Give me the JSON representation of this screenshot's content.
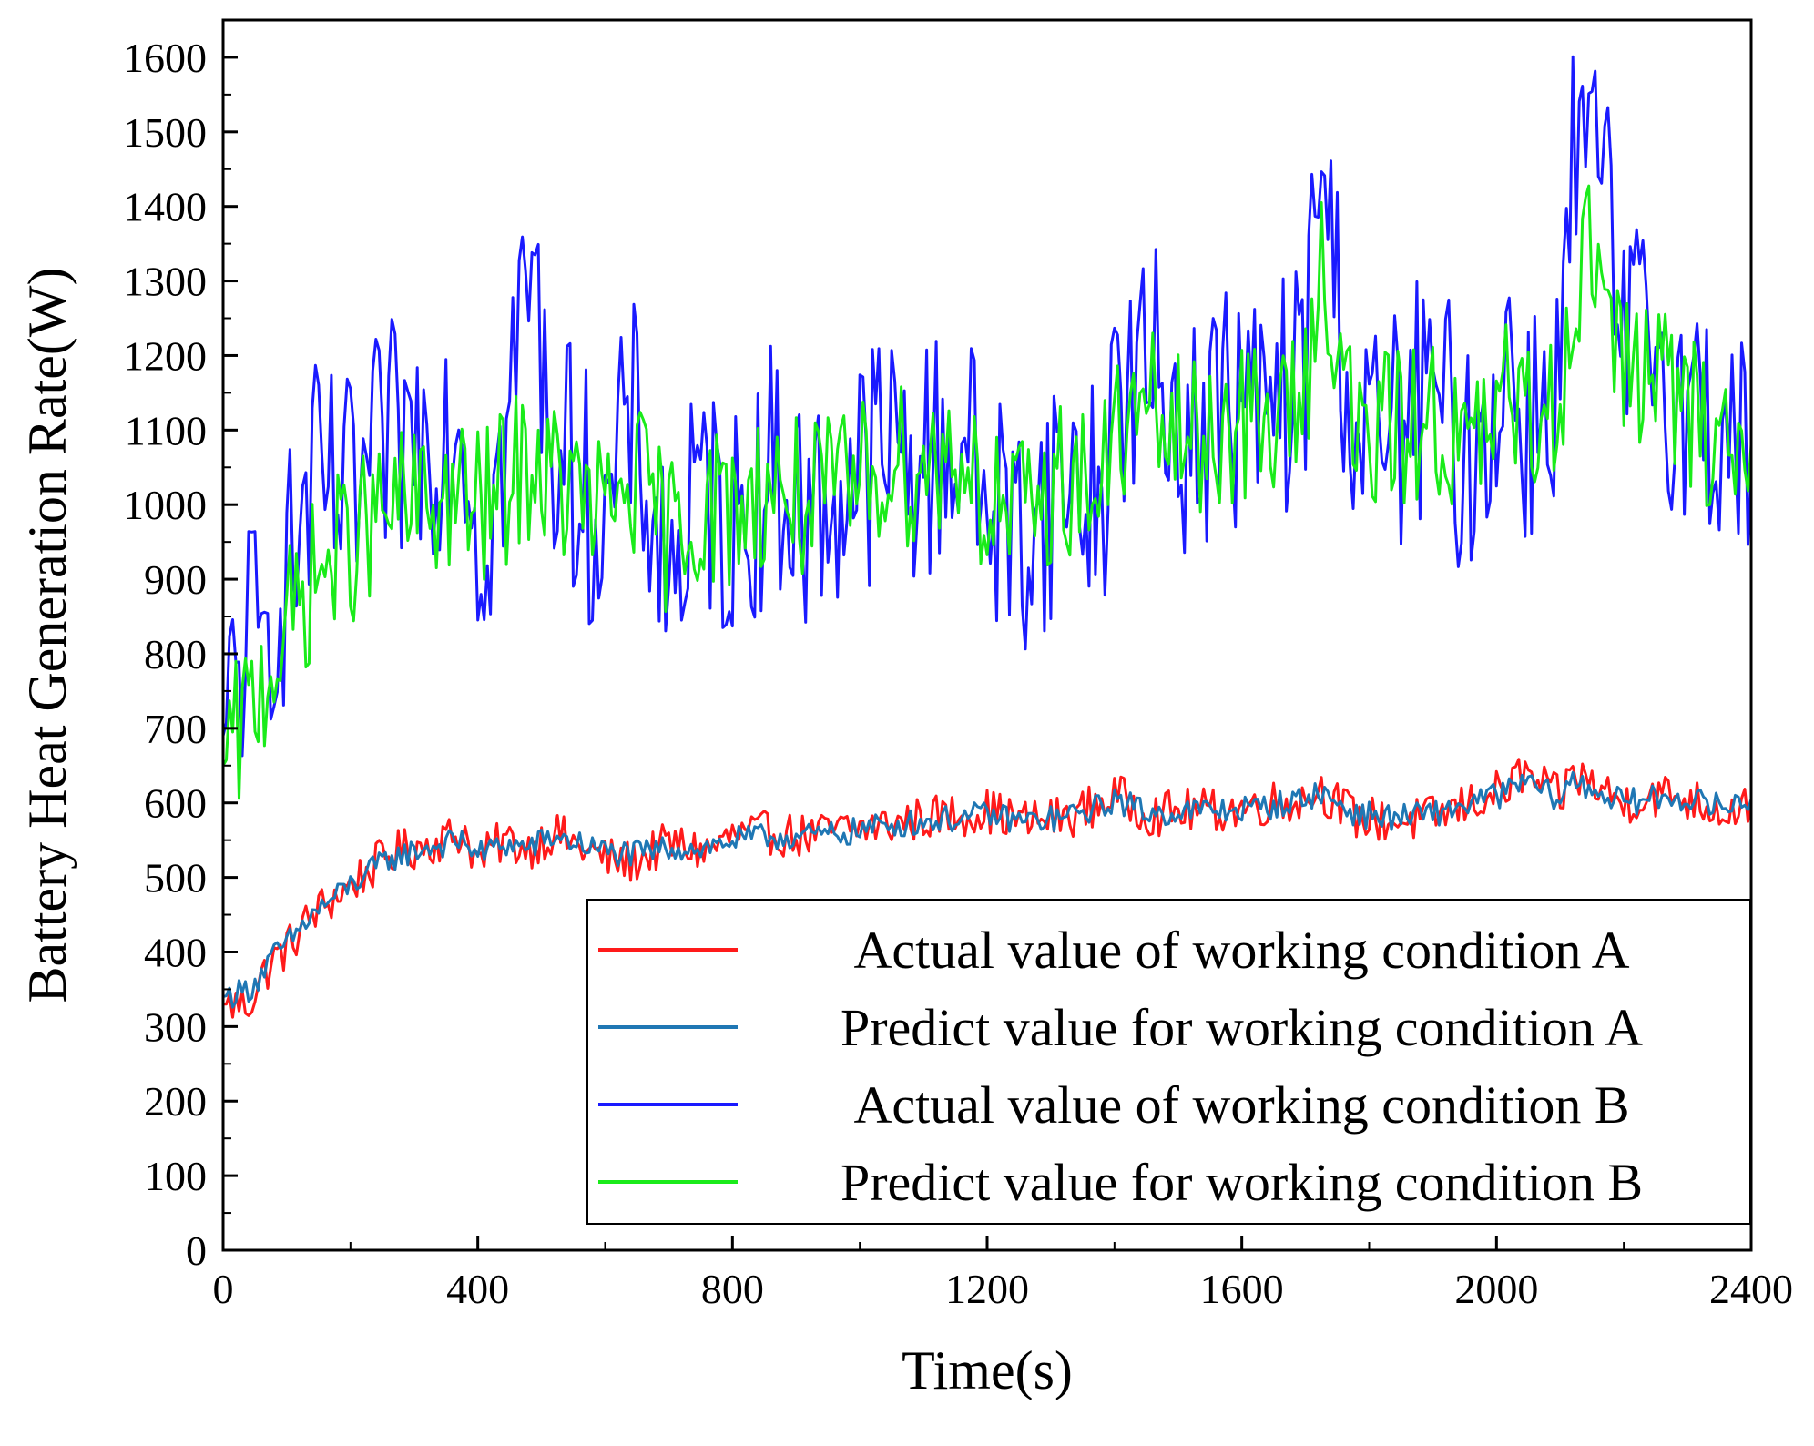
{
  "chart_data": {
    "type": "line",
    "title": "",
    "xlabel": "Time(s)",
    "ylabel": "Battery Heat Generation Rate(W)",
    "xlim": [
      0,
      2400
    ],
    "ylim": [
      0,
      1650
    ],
    "xticks": [
      0,
      400,
      800,
      1200,
      1600,
      2000,
      2400
    ],
    "yticks": [
      0,
      100,
      200,
      300,
      400,
      500,
      600,
      700,
      800,
      900,
      1000,
      1100,
      1200,
      1300,
      1400,
      1500,
      1600
    ],
    "xtick_labels": [
      "0",
      "400",
      "800",
      "1200",
      "1600",
      "2000",
      "2400"
    ],
    "ytick_labels": [
      "0",
      "100",
      "200",
      "300",
      "400",
      "500",
      "600",
      "700",
      "800",
      "900",
      "1000",
      "1100",
      "1200",
      "1300",
      "1400",
      "1500",
      "1600"
    ],
    "legend_position": "bottom-right",
    "series": [
      {
        "name": "Actual value of working condition A",
        "color": "#ff1a1a",
        "x": [
          0,
          20,
          40,
          60,
          80,
          100,
          140,
          200,
          260,
          320,
          380,
          400,
          440,
          480,
          520,
          560,
          600,
          640,
          700,
          760,
          800,
          860,
          920,
          980,
          1040,
          1100,
          1160,
          1200,
          1260,
          1320,
          1380,
          1400,
          1460,
          1520,
          1580,
          1640,
          1700,
          1720,
          1780,
          1840,
          1900,
          1960,
          2020,
          2040,
          2100,
          2120,
          2160,
          2200,
          2240,
          2280,
          2320,
          2360,
          2400
        ],
        "values": [
          330,
          330,
          330,
          365,
          390,
          405,
          450,
          490,
          530,
          545,
          560,
          520,
          550,
          540,
          560,
          540,
          525,
          520,
          545,
          535,
          555,
          560,
          555,
          565,
          570,
          580,
          585,
          590,
          575,
          580,
          600,
          610,
          585,
          590,
          590,
          600,
          605,
          620,
          580,
          575,
          580,
          600,
          620,
          640,
          605,
          640,
          620,
          600,
          610,
          610,
          600,
          590,
          600
        ]
      },
      {
        "name": "Predict value for working condition A",
        "color": "#1f77b4",
        "x": [
          0,
          20,
          40,
          60,
          80,
          100,
          140,
          200,
          260,
          320,
          380,
          400,
          440,
          480,
          520,
          560,
          600,
          640,
          700,
          760,
          800,
          860,
          920,
          980,
          1040,
          1100,
          1160,
          1200,
          1260,
          1320,
          1380,
          1400,
          1460,
          1520,
          1580,
          1640,
          1700,
          1720,
          1780,
          1840,
          1900,
          1960,
          2020,
          2040,
          2100,
          2120,
          2160,
          2200,
          2240,
          2280,
          2320,
          2360,
          2400
        ],
        "values": [
          340,
          345,
          350,
          370,
          395,
          410,
          450,
          490,
          525,
          540,
          550,
          530,
          545,
          540,
          555,
          545,
          535,
          530,
          540,
          540,
          550,
          555,
          555,
          560,
          570,
          575,
          580,
          585,
          575,
          580,
          595,
          605,
          585,
          590,
          590,
          595,
          605,
          615,
          585,
          580,
          585,
          600,
          615,
          630,
          605,
          630,
          615,
          600,
          605,
          610,
          600,
          595,
          605
        ]
      },
      {
        "name": "Actual value of working condition B",
        "color": "#1a1aff",
        "x": [
          0,
          20,
          40,
          60,
          80,
          100,
          140,
          200,
          260,
          320,
          380,
          400,
          440,
          480,
          520,
          560,
          600,
          640,
          700,
          760,
          800,
          860,
          920,
          980,
          1040,
          1100,
          1160,
          1200,
          1260,
          1320,
          1380,
          1400,
          1460,
          1520,
          1580,
          1640,
          1700,
          1720,
          1780,
          1840,
          1900,
          1960,
          2020,
          2040,
          2100,
          2120,
          2160,
          2200,
          2240,
          2280,
          2320,
          2360,
          2400
        ],
        "values": [
          690,
          760,
          840,
          780,
          880,
          900,
          1020,
          1000,
          1080,
          1100,
          1120,
          940,
          1060,
          1330,
          1080,
          1040,
          960,
          1120,
          900,
          1020,
          960,
          1050,
          980,
          1030,
          1080,
          1050,
          1100,
          1000,
          960,
          1040,
          1000,
          1150,
          1180,
          1090,
          1140,
          1120,
          1180,
          1480,
          1080,
          1100,
          1150,
          1050,
          1200,
          1100,
          1180,
          1450,
          1470,
          1200,
          1250,
          1150,
          1120,
          1100,
          1050
        ]
      },
      {
        "name": "Predict value for working condition B",
        "color": "#1aeb1a",
        "x": [
          0,
          20,
          40,
          60,
          80,
          100,
          140,
          200,
          260,
          320,
          380,
          400,
          440,
          480,
          520,
          560,
          600,
          640,
          700,
          760,
          800,
          860,
          920,
          980,
          1040,
          1100,
          1160,
          1200,
          1260,
          1320,
          1380,
          1400,
          1460,
          1520,
          1580,
          1640,
          1700,
          1720,
          1780,
          1840,
          1900,
          1960,
          2020,
          2040,
          2100,
          2120,
          2160,
          2200,
          2240,
          2280,
          2320,
          2360,
          2400
        ],
        "values": [
          650,
          680,
          720,
          760,
          800,
          830,
          900,
          950,
          990,
          1000,
          1010,
          990,
          1020,
          1060,
          1030,
          1010,
          980,
          1040,
          960,
          1000,
          990,
          1030,
          1000,
          1020,
          1060,
          1050,
          1080,
          1000,
          980,
          1040,
          1020,
          1100,
          1120,
          1080,
          1110,
          1100,
          1140,
          1350,
          1080,
          1100,
          1120,
          1060,
          1150,
          1100,
          1150,
          1300,
          1350,
          1160,
          1200,
          1140,
          1100,
          1090,
          1080
        ]
      }
    ]
  }
}
